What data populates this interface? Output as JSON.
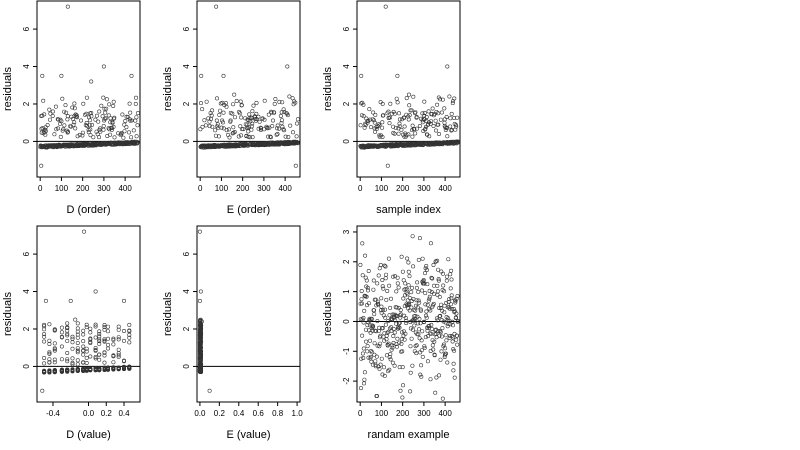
{
  "chart_data": [
    {
      "type": "scatter",
      "xlabel": "D (order)",
      "ylabel": "residuals",
      "xlim": [
        -15,
        470
      ],
      "ylim": [
        -1.9,
        7.5
      ],
      "xticks": [
        0,
        100,
        200,
        300,
        400
      ],
      "yticks": [
        0,
        2,
        4,
        6
      ],
      "hline": 0,
      "points": {
        "kind": "residual",
        "n": 460,
        "xmin": 1,
        "xmax": 460,
        "base": -0.28,
        "drift": 0.22,
        "outliers": [
          [
            130,
            7.2
          ],
          [
            10,
            3.5
          ],
          [
            100,
            3.5
          ],
          [
            300,
            4.0
          ],
          [
            430,
            3.5
          ],
          [
            5,
            -1.3
          ],
          [
            240,
            3.2
          ]
        ]
      }
    },
    {
      "type": "scatter",
      "xlabel": "E (order)",
      "ylabel": "residuals",
      "xlim": [
        -15,
        470
      ],
      "ylim": [
        -1.9,
        7.5
      ],
      "xticks": [
        0,
        100,
        200,
        300,
        400
      ],
      "yticks": [
        0,
        2,
        4,
        6
      ],
      "hline": 0,
      "points": {
        "kind": "residual",
        "n": 460,
        "xmin": 1,
        "xmax": 460,
        "base": -0.28,
        "drift": 0.22,
        "outliers": [
          [
            75,
            7.2
          ],
          [
            5,
            3.5
          ],
          [
            110,
            3.5
          ],
          [
            410,
            4.0
          ],
          [
            420,
            2.4
          ],
          [
            450,
            -1.3
          ],
          [
            160,
            2.5
          ]
        ]
      }
    },
    {
      "type": "scatter",
      "xlabel": "sample index",
      "ylabel": "residuals",
      "xlim": [
        -15,
        470
      ],
      "ylim": [
        -1.9,
        7.5
      ],
      "xticks": [
        0,
        100,
        200,
        300,
        400
      ],
      "yticks": [
        0,
        2,
        4,
        6
      ],
      "hline": 0,
      "points": {
        "kind": "residual",
        "n": 460,
        "xmin": 1,
        "xmax": 460,
        "base": -0.28,
        "drift": 0.22,
        "outliers": [
          [
            120,
            7.2
          ],
          [
            5,
            3.5
          ],
          [
            175,
            3.5
          ],
          [
            410,
            4.0
          ],
          [
            420,
            2.4
          ],
          [
            130,
            -1.3
          ],
          [
            230,
            2.5
          ]
        ]
      }
    },
    {
      "type": "scatter",
      "xlabel": "D (value)",
      "ylabel": "residuals",
      "xlim": [
        -0.58,
        0.58
      ],
      "ylim": [
        -1.9,
        7.5
      ],
      "xticks": [
        -0.4,
        0.0,
        0.2,
        0.4
      ],
      "xtick_labels": [
        "-0.4",
        "0.0",
        "0.2",
        "0.4"
      ],
      "yticks": [
        0,
        2,
        4,
        6
      ],
      "hline": 0,
      "points": {
        "kind": "dvalue",
        "n": 460,
        "outliers": [
          [
            -0.05,
            7.2
          ],
          [
            -0.48,
            3.5
          ],
          [
            -0.2,
            3.5
          ],
          [
            0.08,
            4.0
          ],
          [
            0.4,
            3.5
          ],
          [
            -0.52,
            -1.3
          ],
          [
            -0.15,
            2.5
          ]
        ]
      }
    },
    {
      "type": "scatter",
      "xlabel": "E (value)",
      "ylabel": "residuals",
      "xlim": [
        -0.03,
        1.03
      ],
      "ylim": [
        -1.9,
        7.5
      ],
      "xticks": [
        0.0,
        0.2,
        0.4,
        0.6,
        0.8,
        1.0
      ],
      "xtick_labels": [
        "0.0",
        "0.2",
        "0.4",
        "0.6",
        "0.8",
        "1.0"
      ],
      "yticks": [
        0,
        2,
        4,
        6
      ],
      "hline": 0,
      "points": {
        "kind": "evalue",
        "n": 460,
        "outliers": [
          [
            0.0,
            7.2
          ],
          [
            0.0,
            3.5
          ],
          [
            0.01,
            4.0
          ],
          [
            0.1,
            -1.3
          ],
          [
            0.02,
            2.4
          ]
        ]
      }
    },
    {
      "type": "scatter",
      "xlabel": "randam example",
      "ylabel": "residuals",
      "xlim": [
        -15,
        470
      ],
      "ylim": [
        -2.7,
        3.2
      ],
      "xticks": [
        0,
        100,
        200,
        300,
        400
      ],
      "yticks": [
        -2,
        -1,
        0,
        1,
        2,
        3
      ],
      "hline": 0,
      "points": {
        "kind": "random",
        "n": 460,
        "xmin": 1,
        "xmax": 460,
        "sd": 1.0
      }
    }
  ]
}
